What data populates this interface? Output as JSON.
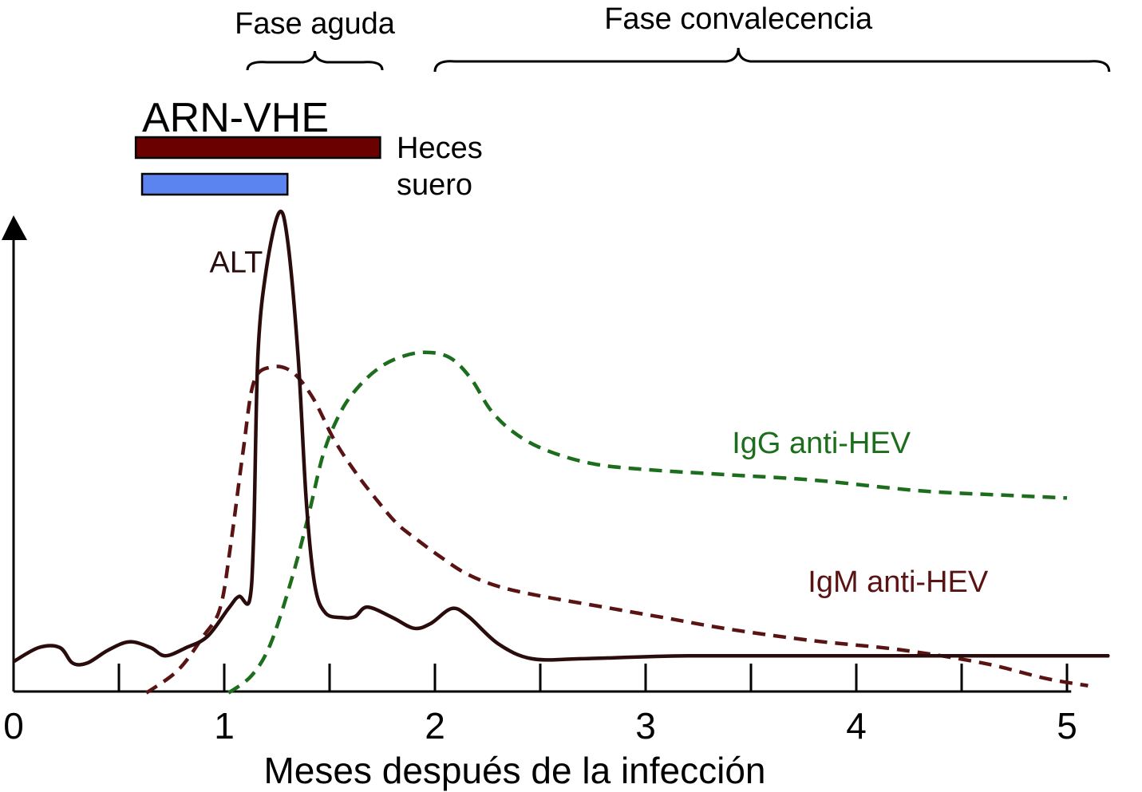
{
  "chart_data": {
    "type": "line",
    "xlabel": "Meses después de la infección",
    "ylabel": "",
    "xlim": [
      0,
      5.2
    ],
    "ylim": [
      0,
      10
    ],
    "x_ticks": [
      0,
      1,
      2,
      3,
      4,
      5
    ],
    "x_tick_labels": [
      "0",
      "1",
      "2",
      "3",
      "4",
      "5"
    ],
    "x_minor_ticks": [
      0.5,
      1.5,
      2.5,
      3.5,
      4.5
    ],
    "grid": false,
    "phases": [
      {
        "label": "Fase aguda",
        "start": 1.11,
        "end": 1.75
      },
      {
        "label": "Fase convalecencia",
        "start": 2.0,
        "end": 5.2
      }
    ],
    "rna": {
      "title": "ARN-VHE",
      "bars": [
        {
          "label": "Heces",
          "start": 0.58,
          "end": 1.74,
          "color": "#6b0000"
        },
        {
          "label": "suero",
          "start": 0.61,
          "end": 1.3,
          "color": "#5b84f0"
        }
      ]
    },
    "series": [
      {
        "name": "ALT",
        "style": "solid",
        "color": "#2a0c0c",
        "label_at": [
          0.93,
          8.69
        ],
        "points": [
          [
            0.0,
            0.62
          ],
          [
            0.12,
            0.91
          ],
          [
            0.22,
            0.91
          ],
          [
            0.28,
            0.59
          ],
          [
            0.35,
            0.59
          ],
          [
            0.45,
            0.86
          ],
          [
            0.55,
            1.03
          ],
          [
            0.65,
            0.91
          ],
          [
            0.72,
            0.74
          ],
          [
            0.82,
            0.91
          ],
          [
            0.92,
            1.14
          ],
          [
            1.02,
            1.72
          ],
          [
            1.07,
            1.97
          ],
          [
            1.12,
            1.89
          ],
          [
            1.14,
            3.31
          ],
          [
            1.16,
            6.98
          ],
          [
            1.2,
            8.76
          ],
          [
            1.26,
            9.92
          ],
          [
            1.3,
            9.37
          ],
          [
            1.35,
            6.98
          ],
          [
            1.39,
            3.9
          ],
          [
            1.43,
            2.2
          ],
          [
            1.48,
            1.63
          ],
          [
            1.56,
            1.53
          ],
          [
            1.62,
            1.55
          ],
          [
            1.68,
            1.75
          ],
          [
            1.8,
            1.53
          ],
          [
            1.9,
            1.31
          ],
          [
            1.98,
            1.41
          ],
          [
            2.08,
            1.72
          ],
          [
            2.16,
            1.55
          ],
          [
            2.3,
            0.99
          ],
          [
            2.46,
            0.68
          ],
          [
            2.7,
            0.68
          ],
          [
            3.2,
            0.74
          ],
          [
            4.0,
            0.74
          ],
          [
            5.05,
            0.74
          ],
          [
            5.2,
            0.74
          ]
        ]
      },
      {
        "name": "IgM anti-HEV",
        "style": "dashed",
        "color": "#5a1313",
        "label_at": [
          3.77,
          2.07
        ],
        "points": [
          [
            0.63,
            -0.03
          ],
          [
            0.78,
            0.44
          ],
          [
            0.9,
            1.14
          ],
          [
            0.98,
            1.72
          ],
          [
            1.03,
            3.02
          ],
          [
            1.09,
            5.0
          ],
          [
            1.14,
            6.41
          ],
          [
            1.22,
            6.72
          ],
          [
            1.32,
            6.63
          ],
          [
            1.42,
            6.09
          ],
          [
            1.52,
            5.23
          ],
          [
            1.62,
            4.56
          ],
          [
            1.72,
            3.99
          ],
          [
            1.82,
            3.48
          ],
          [
            1.92,
            3.13
          ],
          [
            2.02,
            2.81
          ],
          [
            2.15,
            2.44
          ],
          [
            2.3,
            2.18
          ],
          [
            2.5,
            1.98
          ],
          [
            2.8,
            1.75
          ],
          [
            3.1,
            1.52
          ],
          [
            3.4,
            1.29
          ],
          [
            3.8,
            1.05
          ],
          [
            4.2,
            0.87
          ],
          [
            4.6,
            0.59
          ],
          [
            4.9,
            0.27
          ],
          [
            5.1,
            0.12
          ]
        ]
      },
      {
        "name": "IgG anti-HEV",
        "style": "dashed",
        "color": "#1c6e1c",
        "label_at": [
          3.41,
          4.94
        ],
        "points": [
          [
            1.02,
            -0.03
          ],
          [
            1.13,
            0.33
          ],
          [
            1.22,
            0.99
          ],
          [
            1.32,
            2.33
          ],
          [
            1.4,
            3.65
          ],
          [
            1.47,
            4.92
          ],
          [
            1.55,
            5.77
          ],
          [
            1.63,
            6.28
          ],
          [
            1.73,
            6.69
          ],
          [
            1.83,
            6.92
          ],
          [
            1.95,
            7.03
          ],
          [
            2.07,
            6.92
          ],
          [
            2.17,
            6.49
          ],
          [
            2.27,
            5.8
          ],
          [
            2.39,
            5.32
          ],
          [
            2.54,
            4.98
          ],
          [
            2.75,
            4.72
          ],
          [
            3.0,
            4.6
          ],
          [
            3.4,
            4.49
          ],
          [
            3.8,
            4.38
          ],
          [
            4.3,
            4.16
          ],
          [
            4.7,
            4.07
          ],
          [
            5.0,
            4.01
          ]
        ]
      }
    ]
  }
}
